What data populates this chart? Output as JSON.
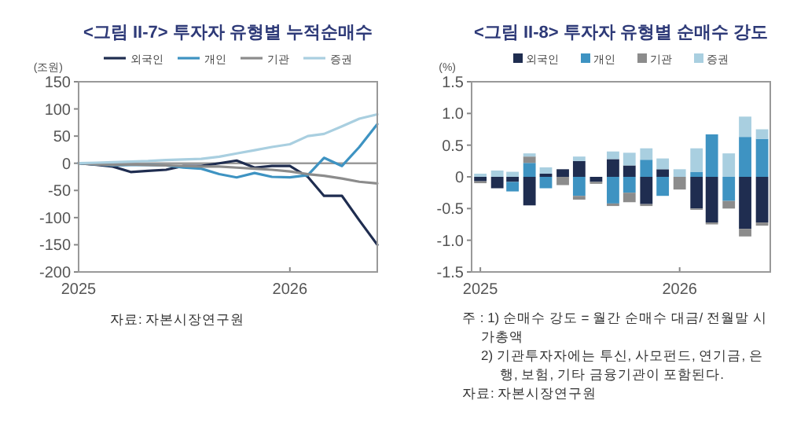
{
  "chart_data": [
    {
      "type": "line",
      "title": "<그림 II-7> 투자자 유형별 누적순매수",
      "ylabel": "(조원)",
      "legend": "top",
      "x": [
        "2025-01",
        "2025-02",
        "2025-03",
        "2025-04",
        "2025-05",
        "2025-06",
        "2025-07",
        "2025-08",
        "2025-09",
        "2025-10",
        "2025-11",
        "2025-12",
        "2026-01",
        "2026-02",
        "2026-03",
        "2026-04",
        "2026-05",
        "2026-06"
      ],
      "xlim": [
        "2025-01",
        "2026-06"
      ],
      "xticks": [
        {
          "value": "2025-01",
          "label": "2025"
        },
        {
          "value": "2026-01",
          "label": "2026"
        }
      ],
      "ylim": [
        -200,
        150
      ],
      "yticks": [
        150,
        100,
        50,
        0,
        -50,
        -100,
        -150,
        -200
      ],
      "ref_lines": [
        {
          "axis": "y",
          "value": 0,
          "color": "#9a9a9a"
        }
      ],
      "series": [
        {
          "name": "외국인",
          "color": "#1f2d50",
          "values": [
            0,
            -3,
            -6,
            -16,
            -14,
            -12,
            -5,
            -5,
            0,
            5,
            -8,
            -5,
            -5,
            -25,
            -60,
            -60,
            -105,
            -150
          ]
        },
        {
          "name": "개인",
          "color": "#3e93c2",
          "values": [
            0,
            -2,
            -4,
            -3,
            -3,
            -4,
            -8,
            -10,
            -20,
            -26,
            -18,
            -25,
            -26,
            -22,
            10,
            -5,
            30,
            72
          ]
        },
        {
          "name": "기관",
          "color": "#8c8c8c",
          "values": [
            0,
            -2,
            -3,
            -2,
            -3,
            -4,
            -5,
            -6,
            -6,
            -8,
            -10,
            -12,
            -15,
            -20,
            -23,
            -28,
            -34,
            -37
          ]
        },
        {
          "name": "증권",
          "color": "#a9cfe0",
          "values": [
            0,
            1,
            2,
            3,
            4,
            6,
            7,
            8,
            12,
            18,
            24,
            30,
            35,
            50,
            54,
            68,
            82,
            90
          ]
        }
      ],
      "annotations": [
        "자료: 자본시장연구원"
      ]
    },
    {
      "type": "bar",
      "stacked": true,
      "title": "<그림 II-8> 투자자 유형별 순매수 강도",
      "ylabel": "(%)",
      "legend": "top",
      "x": [
        "2025-01",
        "2025-02",
        "2025-03",
        "2025-04",
        "2025-05",
        "2025-06",
        "2025-07",
        "2025-08",
        "2025-09",
        "2025-10",
        "2025-11",
        "2025-12",
        "2026-01",
        "2026-02",
        "2026-03",
        "2026-04",
        "2026-05",
        "2026-06"
      ],
      "xlim": [
        "2024-12-16",
        "2026-06-16"
      ],
      "xticks": [
        {
          "value": "2025-01",
          "label": "2025"
        },
        {
          "value": "2026-01",
          "label": "2026"
        }
      ],
      "ylim": [
        -1.5,
        1.5
      ],
      "yticks": [
        {
          "value": 1.5,
          "label": "1.5"
        },
        {
          "value": 1,
          "label": "1.0"
        },
        {
          "value": 0.5,
          "label": "0.5"
        },
        0,
        -0.5,
        {
          "value": -1,
          "label": "-1.0"
        },
        -1.5
      ],
      "series": [
        {
          "name": "외국인",
          "color": "#1f2d50",
          "values": [
            -0.07,
            -0.18,
            -0.08,
            -0.45,
            0.05,
            0.12,
            0.25,
            -0.08,
            0.28,
            0.18,
            -0.43,
            0.12,
            0,
            -0.5,
            -0.72,
            0,
            -0.82,
            -0.72
          ]
        },
        {
          "name": "개인",
          "color": "#3e93c2",
          "values": [
            0,
            0,
            -0.15,
            0.22,
            -0.18,
            0,
            -0.3,
            0,
            -0.42,
            -0.25,
            0.27,
            -0.3,
            0,
            0.08,
            0.67,
            -0.38,
            0.63,
            0.6
          ]
        },
        {
          "name": "기관",
          "color": "#8c8c8c",
          "values": [
            -0.03,
            0,
            0,
            0.1,
            0,
            -0.13,
            -0.06,
            -0.03,
            -0.04,
            -0.15,
            -0.03,
            0,
            -0.2,
            -0.02,
            -0.03,
            -0.12,
            -0.12,
            -0.05
          ]
        },
        {
          "name": "증권",
          "color": "#a9cfe0",
          "values": [
            0.05,
            0.1,
            0.08,
            0.05,
            0.1,
            null,
            0.07,
            null,
            0.12,
            0.2,
            0.18,
            0.17,
            0.12,
            0.37,
            0,
            0.37,
            0.32,
            0.15
          ]
        }
      ],
      "annotations": [
        "주 : 1) 순매수 강도 = 월간 순매수 대금/ 전월말 시가총액",
        "2) 기관투자자에는 투신, 사모펀드, 연기금, 은행, 보험, 기타 금융기관이 포함된다.",
        "자료: 자본시장연구원"
      ]
    }
  ]
}
